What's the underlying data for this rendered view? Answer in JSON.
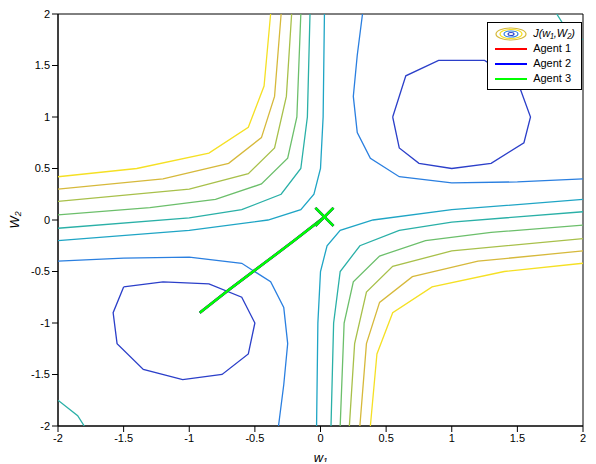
{
  "chart_data": {
    "type": "contour",
    "xlabel": "w₁",
    "ylabel": "W₂",
    "xlim": [
      -2,
      2
    ],
    "ylim": [
      -2,
      2
    ],
    "xticks": [
      -2,
      -1.5,
      -1,
      -0.5,
      0,
      0.5,
      1,
      1.5,
      2
    ],
    "yticks": [
      -2,
      -1.5,
      -1,
      -0.5,
      0,
      0.5,
      1,
      1.5,
      2
    ],
    "legend": "upper right",
    "series": [
      {
        "name": "J(w₁,W₂)",
        "type": "contour",
        "contours": [
          {
            "color": "#1fa5c5",
            "x": [
              0.03,
              0.02,
              0,
              -0.05,
              -0.15,
              -0.4,
              -1,
              -2
            ],
            "y": [
              2,
              1,
              0.5,
              0.25,
              0.1,
              0,
              -0.1,
              -0.2
            ]
          },
          {
            "color": "#2ab0a7",
            "x": [
              -0.08,
              -0.1,
              -0.15,
              -0.3,
              -0.6,
              -1,
              -2
            ],
            "y": [
              2,
              1,
              0.5,
              0.25,
              0.1,
              0.02,
              -0.08
            ]
          },
          {
            "color": "#6cbf6b",
            "x": [
              -0.15,
              -0.18,
              -0.25,
              -0.45,
              -0.8,
              -1.3,
              -2
            ],
            "y": [
              2,
              1,
              0.6,
              0.35,
              0.2,
              0.12,
              0.05
            ]
          },
          {
            "color": "#a8c04a",
            "x": [
              -0.22,
              -0.26,
              -0.35,
              -0.55,
              -1,
              -2
            ],
            "y": [
              2,
              1.2,
              0.7,
              0.45,
              0.3,
              0.18
            ]
          },
          {
            "color": "#d6b93b",
            "x": [
              -0.3,
              -0.35,
              -0.45,
              -0.7,
              -1.2,
              -2
            ],
            "y": [
              2,
              1.2,
              0.8,
              0.55,
              0.4,
              0.3
            ]
          },
          {
            "color": "#f5e024",
            "x": [
              -0.38,
              -0.43,
              -0.55,
              -0.85,
              -1.4,
              -2
            ],
            "y": [
              2,
              1.3,
              0.9,
              0.65,
              0.5,
              0.42
            ]
          },
          {
            "color": "#1fa5c5",
            "x": [
              -0.03,
              -0.02,
              0,
              0.05,
              0.15,
              0.4,
              1,
              2
            ],
            "y": [
              -2,
              -1,
              -0.5,
              -0.25,
              -0.1,
              0,
              0.1,
              0.2
            ]
          },
          {
            "color": "#2ab0a7",
            "x": [
              0.08,
              0.1,
              0.15,
              0.3,
              0.6,
              1,
              2
            ],
            "y": [
              -2,
              -1,
              -0.5,
              -0.25,
              -0.1,
              -0.02,
              0.08
            ]
          },
          {
            "color": "#6cbf6b",
            "x": [
              0.15,
              0.18,
              0.25,
              0.45,
              0.8,
              1.3,
              2
            ],
            "y": [
              -2,
              -1,
              -0.6,
              -0.35,
              -0.2,
              -0.12,
              -0.05
            ]
          },
          {
            "color": "#a8c04a",
            "x": [
              0.22,
              0.26,
              0.35,
              0.55,
              1,
              2
            ],
            "y": [
              -2,
              -1.2,
              -0.7,
              -0.45,
              -0.3,
              -0.18
            ]
          },
          {
            "color": "#d6b93b",
            "x": [
              0.3,
              0.35,
              0.45,
              0.7,
              1.2,
              2
            ],
            "y": [
              -2,
              -1.2,
              -0.8,
              -0.55,
              -0.4,
              -0.3
            ]
          },
          {
            "color": "#f5e024",
            "x": [
              0.38,
              0.43,
              0.55,
              0.85,
              1.4,
              2
            ],
            "y": [
              -2,
              -1.3,
              -0.9,
              -0.65,
              -0.5,
              -0.42
            ]
          },
          {
            "color": "#2a7fe0",
            "x": [
              -2,
              -1.5,
              -1,
              -0.6,
              -0.38,
              -0.28,
              -0.25,
              -0.28,
              -0.32
            ],
            "y": [
              -0.4,
              -0.37,
              -0.36,
              -0.42,
              -0.6,
              -0.85,
              -1.2,
              -1.6,
              -2
            ]
          },
          {
            "color": "#2a7fe0",
            "x": [
              0.32,
              0.28,
              0.25,
              0.28,
              0.38,
              0.6,
              1,
              1.5,
              2
            ],
            "y": [
              2,
              1.6,
              1.2,
              0.85,
              0.6,
              0.42,
              0.36,
              0.37,
              0.4
            ]
          },
          {
            "color": "#2b3fc9",
            "x": [
              -1.5,
              -1.2,
              -0.85,
              -0.6,
              -0.5,
              -0.55,
              -0.75,
              -1.05,
              -1.35,
              -1.55,
              -1.58,
              -1.5
            ],
            "y": [
              -0.65,
              -0.6,
              -0.62,
              -0.75,
              -1,
              -1.3,
              -1.5,
              -1.55,
              -1.45,
              -1.2,
              -0.9,
              -0.65
            ]
          },
          {
            "color": "#2b3fc9",
            "x": [
              0.55,
              0.6,
              0.75,
              1,
              1.3,
              1.55,
              1.6,
              1.5,
              1.25,
              0.9,
              0.65,
              0.55
            ],
            "y": [
              1,
              0.7,
              0.55,
              0.5,
              0.55,
              0.75,
              1,
              1.35,
              1.55,
              1.55,
              1.4,
              1
            ]
          },
          {
            "color": "#2ab0a7",
            "x": [
              -2,
              -1.85,
              -1.8
            ],
            "y": [
              -1.75,
              -1.9,
              -2
            ]
          },
          {
            "color": "#2ab0a7",
            "x": [
              2,
              1.85,
              1.8
            ],
            "y": [
              1.75,
              1.9,
              2
            ]
          }
        ]
      },
      {
        "name": "Agent 1",
        "color": "#ff0000",
        "x": [
          -0.92,
          -0.7,
          -0.45,
          -0.2,
          0.03
        ],
        "y": [
          -0.9,
          -0.68,
          -0.44,
          -0.2,
          0.03
        ],
        "marker": "x"
      },
      {
        "name": "Agent 2",
        "color": "#0000ff",
        "x": [
          -0.92,
          -0.7,
          -0.45,
          -0.2,
          0.03
        ],
        "y": [
          -0.9,
          -0.68,
          -0.44,
          -0.2,
          0.03
        ],
        "marker": "x"
      },
      {
        "name": "Agent 3",
        "color": "#00ff00",
        "x": [
          -0.92,
          -0.7,
          -0.45,
          -0.2,
          0.03
        ],
        "y": [
          -0.9,
          -0.68,
          -0.44,
          -0.2,
          0.03
        ],
        "marker": "x"
      }
    ]
  }
}
